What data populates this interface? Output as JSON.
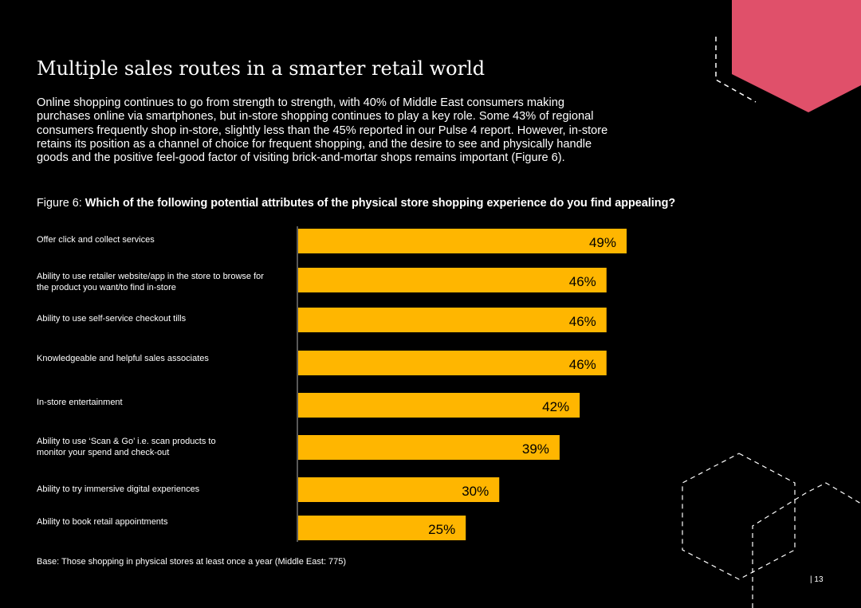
{
  "page": {
    "title": "Multiple sales routes in a smarter retail world",
    "intro": "Online shopping continues to go from strength to strength, with 40% of Middle East consumers making purchases online via smartphones, but in-store shopping continues to play a key role. Some 43% of regional consumers frequently shop in-store, slightly less than the 45% reported in our Pulse 4 report. However, in-store retains its position as a channel of choice for frequent shopping, and the desire to see and physically handle goods and the positive feel-good factor of visiting brick-and-mortar shops remains important (Figure 6).",
    "figure_label": "Figure 6:",
    "figure_question": "Which of the following potential attributes of the physical store shopping experience do you find appealing?",
    "base_note": "Base: Those shopping in physical stores at least once a year (Middle East: 775)",
    "page_number": "| 13"
  },
  "colors": {
    "bar": "#FFB600",
    "axis": "#b0b0b0",
    "hexagon_fill": "#E0506A",
    "dash": "#ffffff"
  },
  "chart_data": {
    "type": "bar",
    "orientation": "horizontal",
    "categories": [
      "Offer click and collect services",
      "Ability to use retailer website/app in the store to browse for the product you want/to find in-store",
      "Ability to use self-service checkout tills",
      "Knowledgeable and helpful sales associates",
      "In-store entertainment",
      "Ability to use ‘Scan & Go’ i.e. scan products to monitor your spend and check-out",
      "Ability to try immersive digital experiences",
      "Ability to book retail appointments"
    ],
    "values": [
      49,
      46,
      46,
      46,
      42,
      39,
      30,
      25
    ],
    "value_labels": [
      "49%",
      "46%",
      "46%",
      "46%",
      "42%",
      "39%",
      "30%",
      "25%"
    ],
    "unit": "%",
    "xlim": [
      0,
      50
    ],
    "grid": false,
    "legend": "none"
  }
}
